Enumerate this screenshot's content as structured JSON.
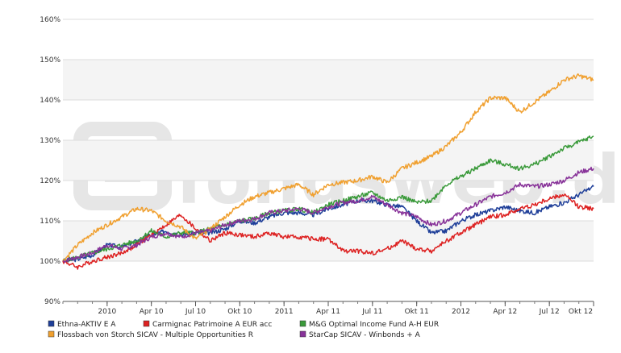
{
  "chart_data": {
    "type": "line",
    "watermark": "fondsweb.de",
    "ylim": [
      90,
      160
    ],
    "y_ticks": [
      "90%",
      "100%",
      "110%",
      "120%",
      "130%",
      "140%",
      "150%",
      "160%"
    ],
    "x_ticks": [
      "2010",
      "Apr 10",
      "Jul 10",
      "Okt 10",
      "2011",
      "Apr 11",
      "Jul 11",
      "Okt 11",
      "2012",
      "Apr 12",
      "Jul 12",
      "Okt 12"
    ],
    "x_range": [
      "2009-10",
      "2012-10"
    ],
    "x": [
      "2009-10",
      "2009-11",
      "2009-12",
      "2010-01",
      "2010-02",
      "2010-03",
      "2010-04",
      "2010-05",
      "2010-06",
      "2010-07",
      "2010-08",
      "2010-09",
      "2010-10",
      "2010-11",
      "2010-12",
      "2011-01",
      "2011-02",
      "2011-03",
      "2011-04",
      "2011-05",
      "2011-06",
      "2011-07",
      "2011-08",
      "2011-09",
      "2011-10",
      "2011-11",
      "2011-12",
      "2012-01",
      "2012-02",
      "2012-03",
      "2012-04",
      "2012-05",
      "2012-06",
      "2012-07",
      "2012-08",
      "2012-09",
      "2012-10"
    ],
    "series": [
      {
        "name": "Ethna-AKTIV E A",
        "color": "#1f3f99",
        "values": [
          100,
          100.5,
          101.5,
          104,
          103.5,
          105,
          106.5,
          107.5,
          106.5,
          107,
          107,
          108,
          110,
          109.5,
          111,
          112,
          112,
          111.5,
          113,
          114,
          115,
          115,
          114,
          113.5,
          110,
          107,
          107.5,
          110,
          111.5,
          112.5,
          113.5,
          112.5,
          112,
          113.5,
          114.5,
          116.5,
          118.5
        ]
      },
      {
        "name": "Carmignac Patrimoine A EUR acc",
        "color": "#dd2222",
        "values": [
          100,
          98.5,
          100,
          101,
          102,
          104,
          106.5,
          109,
          111.5,
          108,
          105,
          107,
          106.5,
          106,
          107,
          106,
          106,
          105.5,
          105.5,
          102.5,
          102.5,
          102,
          103,
          105,
          103,
          102.5,
          105,
          107,
          109,
          111,
          111.5,
          113,
          114,
          115.5,
          116.5,
          113.5,
          113
        ]
      },
      {
        "name": "M&G Optimal Income Fund A-H EUR",
        "color": "#3a9a3a",
        "values": [
          100,
          101,
          102,
          103,
          104,
          105,
          107.5,
          106,
          107,
          107,
          108,
          109,
          110,
          110.5,
          112,
          112.5,
          113,
          112,
          114,
          115,
          116,
          117,
          115,
          116,
          114.5,
          115,
          119,
          121,
          123,
          125,
          124,
          123,
          124,
          126,
          128,
          129.5,
          131
        ]
      },
      {
        "name": "Flossbach von Storch SICAV - Multiple Opportunities R",
        "color": "#f0a030",
        "values": [
          100,
          104,
          107,
          109,
          111,
          113,
          112.5,
          110,
          108.5,
          105.5,
          108,
          111,
          114,
          116,
          117,
          118,
          119,
          116.5,
          119,
          119.5,
          120,
          121,
          119.5,
          123,
          124.5,
          126,
          128.5,
          132,
          137,
          140.5,
          140.5,
          137,
          139.5,
          142,
          145,
          146,
          145
        ]
      },
      {
        "name": "StarCap SICAV - Winbonds + A",
        "color": "#883399",
        "values": [
          100,
          101,
          102,
          104,
          103,
          104,
          106,
          107,
          106,
          107,
          107.5,
          109,
          110,
          110.5,
          112,
          112.5,
          113,
          112,
          113.5,
          114.5,
          115,
          116,
          114,
          112,
          111,
          109,
          110,
          112,
          114,
          116,
          117,
          119,
          118.5,
          119,
          120,
          122,
          123
        ]
      }
    ]
  }
}
